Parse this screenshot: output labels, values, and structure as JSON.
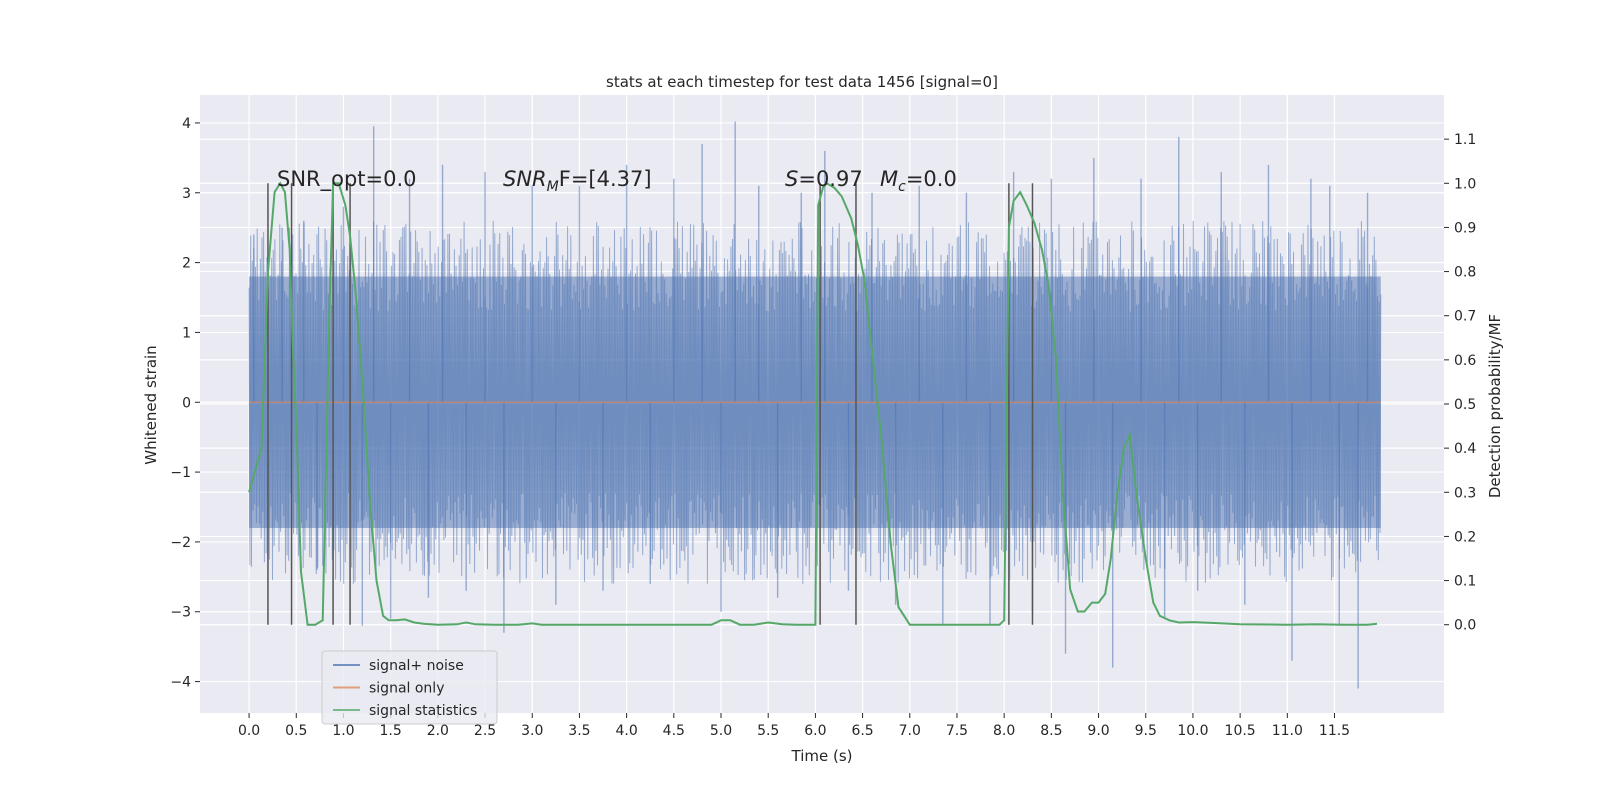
{
  "chart_data": {
    "type": "line",
    "title": "stats at each timestep for test data 1456 [signal=0]",
    "xlabel": "Time (s)",
    "ylabel": "Whitened strain",
    "y2label": "Detection probability/MF",
    "xlim": [
      -0.52,
      12.66
    ],
    "ylim": [
      -4.45,
      4.4
    ],
    "y2lim": [
      -0.2,
      1.2
    ],
    "xticks": [
      "0.0",
      "0.5",
      "1.0",
      "1.5",
      "2.0",
      "2.5",
      "3.0",
      "3.5",
      "4.0",
      "4.5",
      "5.0",
      "5.5",
      "6.0",
      "6.5",
      "7.0",
      "7.5",
      "8.0",
      "8.5",
      "9.0",
      "9.5",
      "10.0",
      "10.5",
      "11.0",
      "11.5"
    ],
    "yticks": [
      "4",
      "3",
      "2",
      "1",
      "0",
      "−1",
      "−2",
      "−3",
      "−4"
    ],
    "y2ticks": [
      "1.1",
      "1.0",
      "0.9",
      "0.8",
      "0.7",
      "0.6",
      "0.5",
      "0.4",
      "0.3",
      "0.2",
      "0.1",
      "0.0"
    ],
    "grid": true,
    "legend_position": "lower-left",
    "legend": [
      {
        "name": "signal+ noise",
        "color": "#4c72b0"
      },
      {
        "name": "signal only",
        "color": "#dd8452"
      },
      {
        "name": "signal statistics",
        "color": "#55a868"
      }
    ],
    "annotations": {
      "snr_opt": "SNR_opt=0.0",
      "snr_mf_base": "SNR",
      "snr_mf_sub": "M",
      "snr_mf_tail": "F=[4.37]",
      "s_label": "S",
      "s_value": "=0.97",
      "mc_base": "M",
      "mc_sub": "c",
      "mc_value": "=0.0"
    },
    "noise": {
      "name": "signal+ noise",
      "color": "#4c72b0",
      "t_start": 0.0,
      "t_end": 11.99,
      "band_upper": 1.8,
      "band_lower": -1.8,
      "spikes": [
        {
          "t": 0.05,
          "y": 2.4
        },
        {
          "t": 0.35,
          "y": 2.5
        },
        {
          "t": 0.58,
          "y": 2.6
        },
        {
          "t": 0.72,
          "y": -2.4
        },
        {
          "t": 1.0,
          "y": 2.8
        },
        {
          "t": 1.2,
          "y": -3.2
        },
        {
          "t": 1.32,
          "y": 3.95
        },
        {
          "t": 1.5,
          "y": -3.1
        },
        {
          "t": 1.7,
          "y": 3.2
        },
        {
          "t": 1.9,
          "y": -2.8
        },
        {
          "t": 2.05,
          "y": 3.4
        },
        {
          "t": 2.3,
          "y": -2.7
        },
        {
          "t": 2.5,
          "y": 3.3
        },
        {
          "t": 2.7,
          "y": -3.3
        },
        {
          "t": 3.0,
          "y": 3.1
        },
        {
          "t": 3.25,
          "y": -2.9
        },
        {
          "t": 3.5,
          "y": 3.1
        },
        {
          "t": 3.75,
          "y": -2.7
        },
        {
          "t": 4.0,
          "y": 3.4
        },
        {
          "t": 4.25,
          "y": -2.6
        },
        {
          "t": 4.5,
          "y": 3.2
        },
        {
          "t": 4.8,
          "y": 3.7
        },
        {
          "t": 5.0,
          "y": -3.0
        },
        {
          "t": 5.15,
          "y": 4.02
        },
        {
          "t": 5.4,
          "y": 3.1
        },
        {
          "t": 5.6,
          "y": -2.8
        },
        {
          "t": 5.85,
          "y": 3.0
        },
        {
          "t": 6.1,
          "y": 3.6
        },
        {
          "t": 6.35,
          "y": -2.7
        },
        {
          "t": 6.6,
          "y": 3.0
        },
        {
          "t": 6.85,
          "y": -2.9
        },
        {
          "t": 7.1,
          "y": 3.1
        },
        {
          "t": 7.35,
          "y": -3.2
        },
        {
          "t": 7.6,
          "y": 3.0
        },
        {
          "t": 7.85,
          "y": -3.2
        },
        {
          "t": 8.1,
          "y": 3.3
        },
        {
          "t": 8.3,
          "y": -3.0
        },
        {
          "t": 8.5,
          "y": 3.2
        },
        {
          "t": 8.65,
          "y": -3.6
        },
        {
          "t": 8.95,
          "y": 3.5
        },
        {
          "t": 9.15,
          "y": -3.8
        },
        {
          "t": 9.45,
          "y": 3.2
        },
        {
          "t": 9.7,
          "y": -3.1
        },
        {
          "t": 9.85,
          "y": 3.8
        },
        {
          "t": 10.05,
          "y": -2.7
        },
        {
          "t": 10.3,
          "y": 3.3
        },
        {
          "t": 10.55,
          "y": -2.9
        },
        {
          "t": 10.8,
          "y": 3.4
        },
        {
          "t": 11.05,
          "y": -3.7
        },
        {
          "t": 11.25,
          "y": 3.2
        },
        {
          "t": 11.45,
          "y": 3.1
        },
        {
          "t": 11.55,
          "y": -3.2
        },
        {
          "t": 11.75,
          "y": -4.1
        },
        {
          "t": 11.85,
          "y": 3.0
        }
      ]
    },
    "signal_only": {
      "name": "signal only",
      "color": "#dd8452",
      "y": 0.0
    },
    "statistics": {
      "name": "signal statistics",
      "color": "#55a868",
      "x": [
        0.0,
        0.13,
        0.2,
        0.27,
        0.33,
        0.38,
        0.43,
        0.46,
        0.5,
        0.55,
        0.62,
        0.7,
        0.78,
        0.85,
        0.89,
        0.95,
        1.02,
        1.07,
        1.13,
        1.2,
        1.28,
        1.35,
        1.42,
        1.48,
        1.56,
        1.65,
        1.75,
        1.85,
        2.0,
        2.2,
        2.3,
        2.4,
        2.6,
        2.85,
        3.0,
        3.1,
        3.3,
        4.9,
        5.0,
        5.1,
        5.2,
        5.35,
        5.5,
        5.65,
        5.8,
        5.93,
        6.0,
        6.03,
        6.08,
        6.12,
        6.2,
        6.28,
        6.38,
        6.45,
        6.52,
        6.6,
        6.7,
        6.8,
        6.88,
        7.0,
        7.3,
        7.9,
        7.95,
        8.0,
        8.05,
        8.1,
        8.17,
        8.24,
        8.32,
        8.4,
        8.47,
        8.55,
        8.62,
        8.7,
        8.78,
        8.85,
        8.93,
        9.0,
        9.07,
        9.13,
        9.2,
        9.27,
        9.33,
        9.4,
        9.5,
        9.58,
        9.65,
        9.75,
        9.85,
        10.0,
        10.2,
        10.5,
        11.0,
        11.3,
        11.6,
        11.85,
        11.95
      ],
      "y": [
        0.3,
        0.4,
        0.8,
        0.98,
        1.0,
        0.98,
        0.85,
        0.65,
        0.45,
        0.12,
        0.0,
        0.0,
        0.01,
        0.7,
        1.0,
        1.0,
        0.95,
        0.88,
        0.75,
        0.55,
        0.28,
        0.1,
        0.02,
        0.01,
        0.01,
        0.012,
        0.005,
        0.002,
        0.0,
        0.001,
        0.005,
        0.001,
        0.0,
        0.0,
        0.003,
        0.0,
        0.0,
        0.0,
        0.01,
        0.01,
        0.0,
        0.0,
        0.005,
        0.001,
        0.0,
        0.0,
        0.0,
        0.95,
        0.99,
        1.0,
        0.99,
        0.97,
        0.92,
        0.86,
        0.78,
        0.62,
        0.42,
        0.18,
        0.04,
        0.0,
        0.0,
        0.0,
        0.0,
        0.01,
        0.9,
        0.96,
        0.98,
        0.95,
        0.91,
        0.85,
        0.77,
        0.6,
        0.3,
        0.08,
        0.03,
        0.03,
        0.05,
        0.05,
        0.07,
        0.15,
        0.3,
        0.4,
        0.43,
        0.3,
        0.15,
        0.05,
        0.02,
        0.01,
        0.005,
        0.006,
        0.004,
        0.001,
        0.0,
        0.001,
        0.0,
        0.0,
        0.002
      ]
    },
    "vlines": [
      0.2,
      0.45,
      0.89,
      1.07,
      6.05,
      6.43,
      8.05,
      8.3
    ]
  }
}
